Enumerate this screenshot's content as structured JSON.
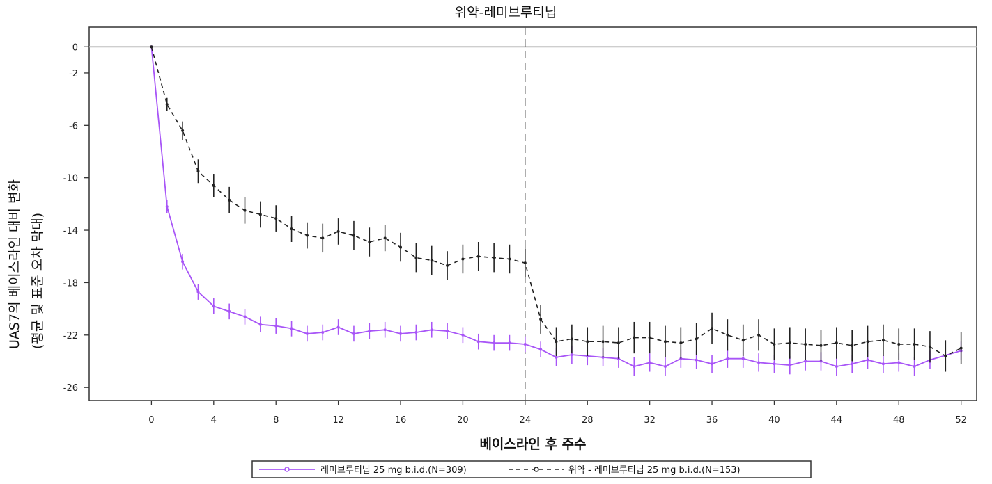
{
  "chart_data": {
    "type": "line",
    "title": "위약-레미브루티닙",
    "xlabel": "베이스라인 후 주수",
    "ylabel_line1": "UAS7의 베이스라인 대비 변화",
    "ylabel_line2": "(평균 및 표준 오차 막대)",
    "xlim": [
      -4,
      53
    ],
    "ylim": [
      -27,
      1.5
    ],
    "xticks": [
      0,
      4,
      8,
      12,
      16,
      20,
      24,
      28,
      32,
      36,
      40,
      44,
      48,
      52
    ],
    "yticks": [
      0,
      -2,
      -6,
      -10,
      -14,
      -18,
      -22,
      -26
    ],
    "reference_line_y": 0,
    "vertical_dashed_x": 24,
    "grid": false,
    "legend_position": "bottom",
    "series": [
      {
        "name": "레미브루티닙 25 mg b.i.d.(N=309)",
        "color": "#a855f7",
        "line_style": "solid",
        "x": [
          0,
          1,
          2,
          3,
          4,
          5,
          6,
          7,
          8,
          9,
          10,
          11,
          12,
          13,
          14,
          15,
          16,
          17,
          18,
          19,
          20,
          21,
          22,
          23,
          24,
          25,
          26,
          27,
          28,
          29,
          30,
          31,
          32,
          33,
          34,
          35,
          36,
          37,
          38,
          39,
          40,
          41,
          42,
          43,
          44,
          45,
          46,
          47,
          48,
          49,
          50,
          52
        ],
        "y": [
          0,
          -12.2,
          -16.4,
          -18.7,
          -19.8,
          -20.2,
          -20.6,
          -21.2,
          -21.3,
          -21.5,
          -21.9,
          -21.8,
          -21.4,
          -21.9,
          -21.7,
          -21.6,
          -21.9,
          -21.8,
          -21.6,
          -21.7,
          -22.0,
          -22.5,
          -22.6,
          -22.6,
          -22.7,
          -23.1,
          -23.7,
          -23.5,
          -23.6,
          -23.7,
          -23.8,
          -24.4,
          -24.1,
          -24.4,
          -23.8,
          -23.9,
          -24.2,
          -23.8,
          -23.8,
          -24.1,
          -24.2,
          -24.3,
          -24.0,
          -24.0,
          -24.4,
          -24.2,
          -23.9,
          -24.2,
          -24.1,
          -24.4,
          -23.9,
          -23.2
        ],
        "se": [
          0,
          0.5,
          0.6,
          0.6,
          0.6,
          0.6,
          0.6,
          0.6,
          0.6,
          0.6,
          0.6,
          0.6,
          0.6,
          0.6,
          0.6,
          0.6,
          0.6,
          0.6,
          0.6,
          0.6,
          0.6,
          0.6,
          0.6,
          0.6,
          0.6,
          0.6,
          0.7,
          0.7,
          0.7,
          0.7,
          0.7,
          0.7,
          0.7,
          0.7,
          0.7,
          0.7,
          0.7,
          0.7,
          0.7,
          0.7,
          0.7,
          0.7,
          0.7,
          0.7,
          0.7,
          0.7,
          0.7,
          0.7,
          0.7,
          0.7,
          0.7,
          0.7
        ]
      },
      {
        "name": "위약 - 레미브루티닙 25 mg b.i.d.(N=153)",
        "color": "#222222",
        "line_style": "dashed",
        "x": [
          0,
          1,
          2,
          3,
          4,
          5,
          6,
          7,
          8,
          9,
          10,
          11,
          12,
          13,
          14,
          15,
          16,
          17,
          18,
          19,
          20,
          21,
          22,
          23,
          24,
          25,
          26,
          27,
          28,
          29,
          30,
          31,
          32,
          33,
          34,
          35,
          36,
          37,
          38,
          39,
          40,
          41,
          42,
          43,
          44,
          45,
          46,
          47,
          48,
          49,
          50,
          51,
          52
        ],
        "y": [
          0,
          -4.4,
          -6.4,
          -9.5,
          -10.6,
          -11.7,
          -12.5,
          -12.8,
          -13.1,
          -13.9,
          -14.4,
          -14.6,
          -14.1,
          -14.4,
          -14.9,
          -14.6,
          -15.3,
          -16.1,
          -16.3,
          -16.7,
          -16.2,
          -16.0,
          -16.1,
          -16.2,
          -16.5,
          -20.8,
          -22.5,
          -22.3,
          -22.5,
          -22.5,
          -22.6,
          -22.2,
          -22.2,
          -22.5,
          -22.6,
          -22.3,
          -21.5,
          -22.0,
          -22.4,
          -22.0,
          -22.7,
          -22.6,
          -22.7,
          -22.8,
          -22.6,
          -22.8,
          -22.5,
          -22.4,
          -22.7,
          -22.7,
          -22.9,
          -23.6,
          -23.0
        ],
        "se": [
          0,
          0.5,
          0.7,
          0.9,
          0.9,
          1.0,
          1.0,
          1.0,
          1.0,
          1.0,
          1.0,
          1.1,
          1.0,
          1.1,
          1.1,
          1.0,
          1.1,
          1.1,
          1.1,
          1.1,
          1.1,
          1.1,
          1.1,
          1.1,
          1.1,
          1.1,
          1.1,
          1.1,
          1.1,
          1.2,
          1.2,
          1.2,
          1.2,
          1.2,
          1.2,
          1.2,
          1.2,
          1.2,
          1.2,
          1.2,
          1.2,
          1.2,
          1.2,
          1.2,
          1.2,
          1.2,
          1.2,
          1.2,
          1.2,
          1.2,
          1.2,
          1.2,
          1.2
        ]
      }
    ]
  }
}
